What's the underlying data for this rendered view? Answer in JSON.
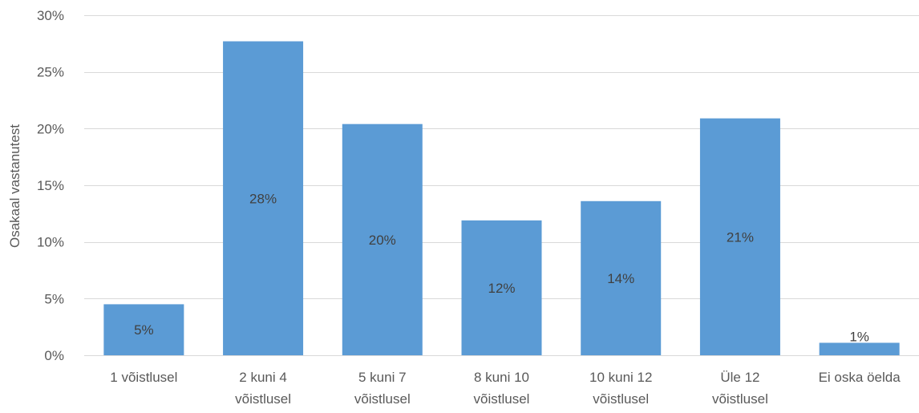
{
  "chart_data": {
    "type": "bar",
    "title": "",
    "xlabel": "",
    "ylabel": "Osakaal vastanutest",
    "ylim": [
      0,
      30
    ],
    "yticks": [
      0,
      5,
      10,
      15,
      20,
      25,
      30
    ],
    "ytick_labels": [
      "0%",
      "5%",
      "10%",
      "15%",
      "20%",
      "25%",
      "30%"
    ],
    "grid": true,
    "legend": "none",
    "bar_color": "#5b9bd5",
    "categories": [
      [
        "1 võistlusel"
      ],
      [
        "2 kuni 4",
        "võistlusel"
      ],
      [
        "5 kuni 7",
        "võistlusel"
      ],
      [
        "8 kuni 10",
        "võistlusel"
      ],
      [
        "10 kuni 12",
        "võistlusel"
      ],
      [
        "Üle 12",
        "võistlusel"
      ],
      [
        "Ei oska öelda"
      ]
    ],
    "values": [
      4.5,
      27.7,
      20.4,
      11.9,
      13.6,
      20.9,
      1.1
    ],
    "data_labels": [
      "5%",
      "28%",
      "20%",
      "12%",
      "14%",
      "21%",
      "1%"
    ]
  }
}
